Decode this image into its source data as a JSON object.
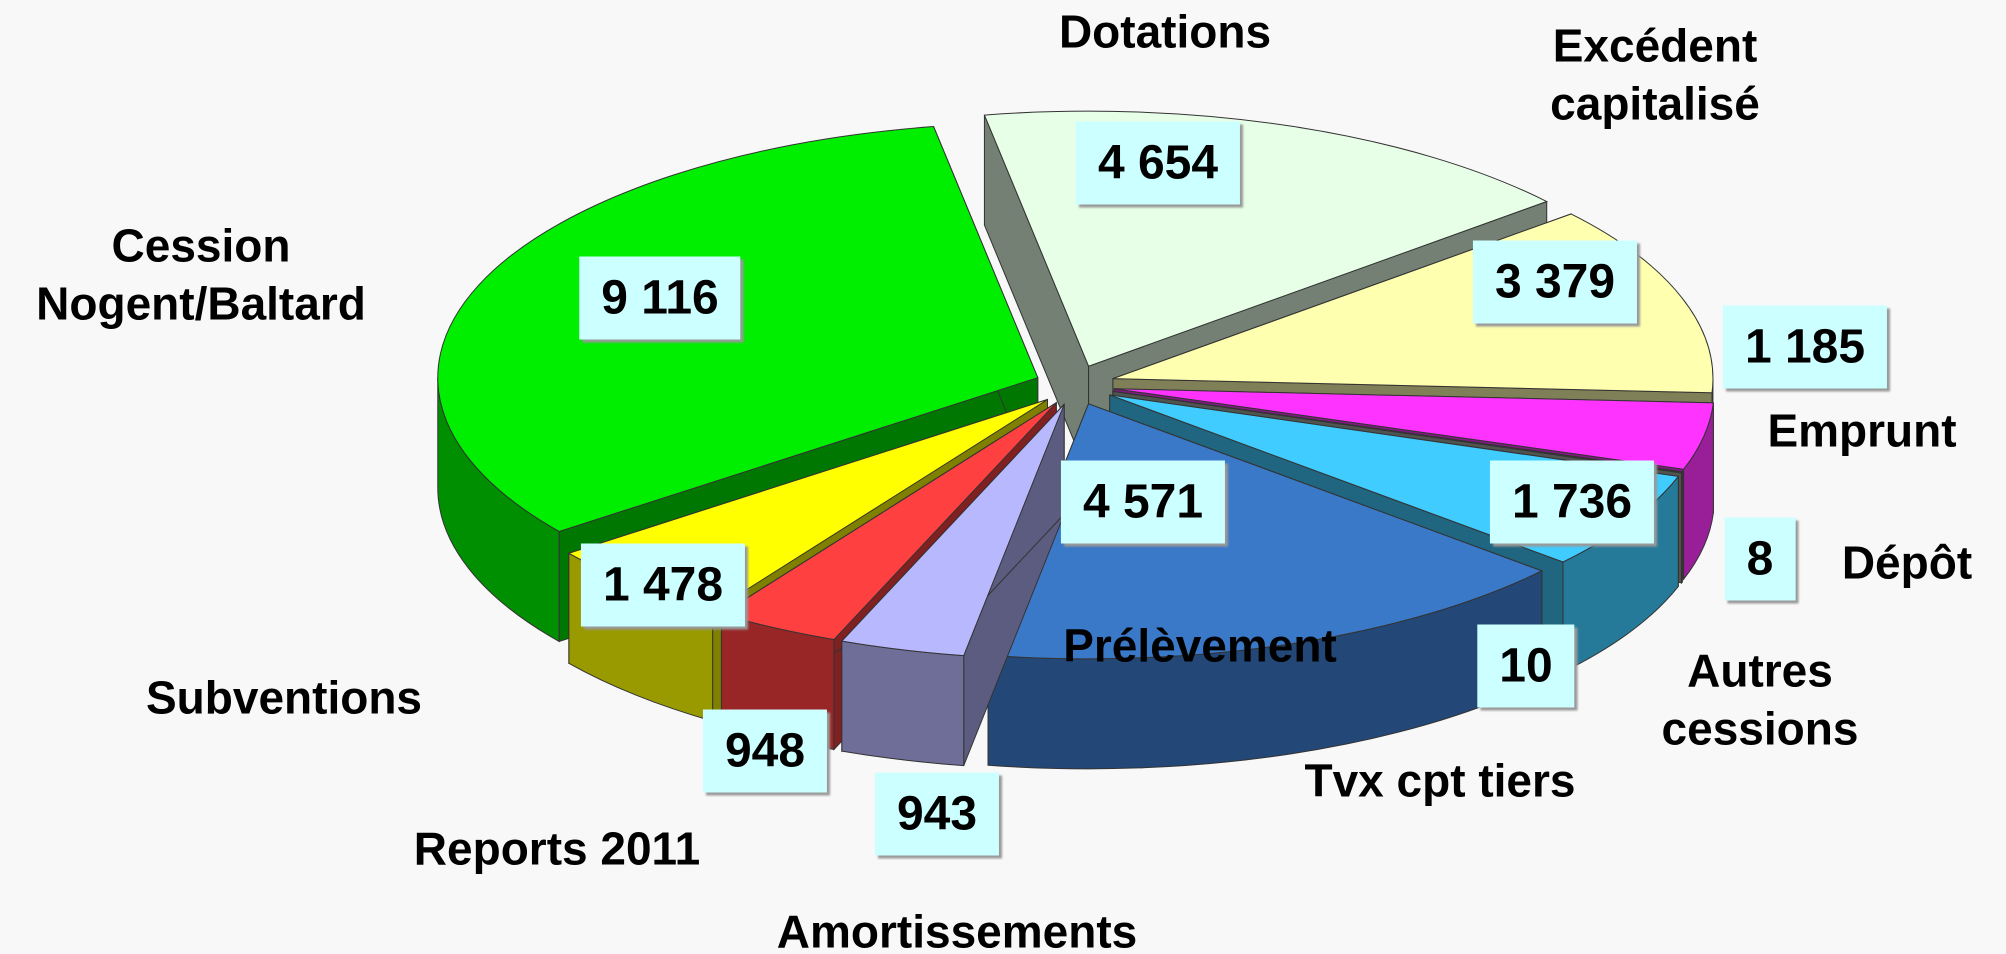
{
  "chart_data": {
    "type": "pie",
    "categories": [
      "Dotations",
      "Excédent capitalisé",
      "Emprunt",
      "Dépôt",
      "Autres cessions",
      "Tvx cpt tiers",
      "Prélèvement",
      "Amortissements",
      "Reports 2011",
      "Subventions",
      "Cession Nogent/Baltard"
    ],
    "values": [
      4654,
      3379,
      1185,
      8,
      10,
      1736,
      4571,
      943,
      948,
      1478,
      9116
    ],
    "value_labels": [
      "4 654",
      "3 379",
      "1 185",
      "8",
      "10",
      "1 736",
      "4 571",
      "943",
      "948",
      "1 478",
      "9 116"
    ],
    "colors": [
      "#e6ffe6",
      "#ffffb0",
      "#ff33ff",
      "#90a090",
      "#a0a8a0",
      "#40ccff",
      "#3a78c8",
      "#b8b8ff",
      "#ff4040",
      "#ffff00",
      "#00ee00"
    ]
  }
}
